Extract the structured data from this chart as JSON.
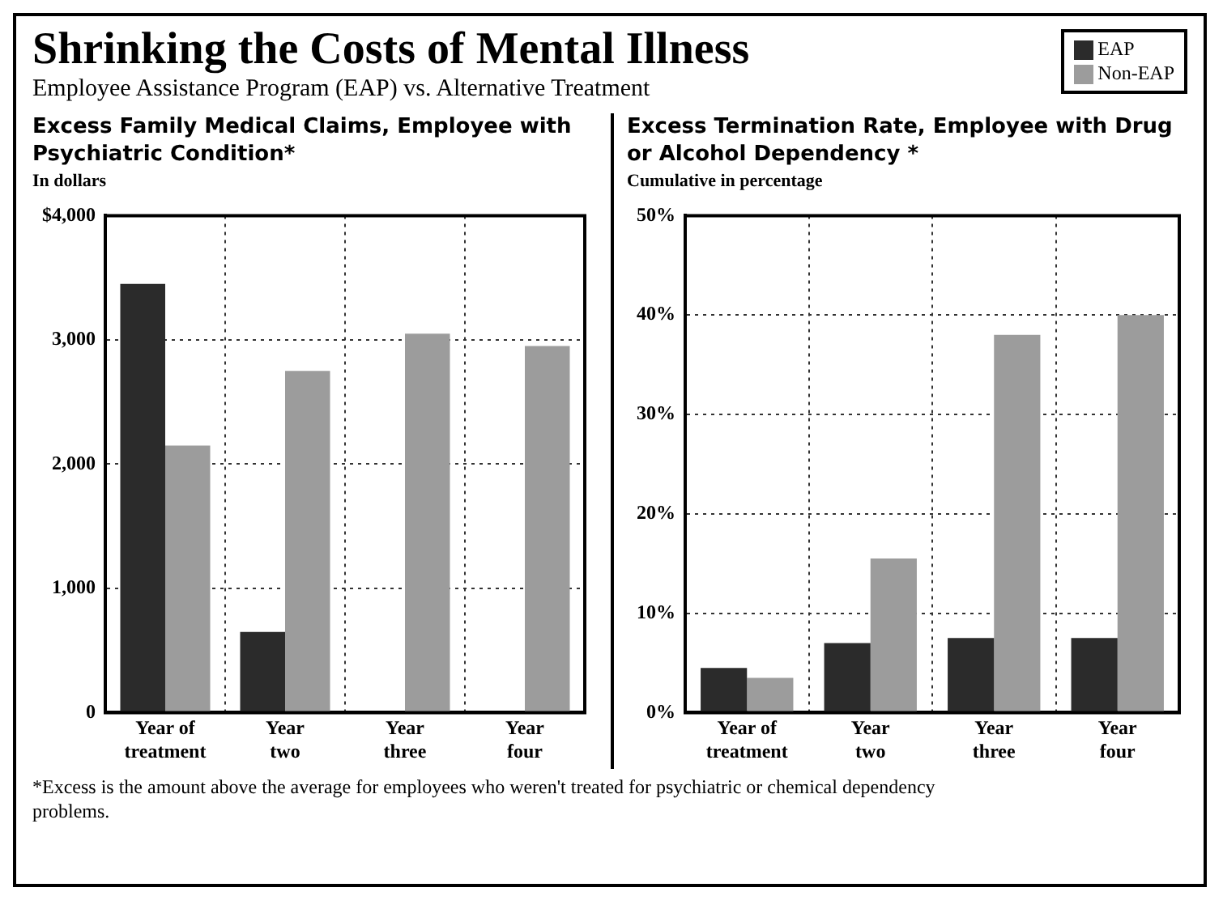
{
  "chart_data": [
    {
      "type": "bar",
      "title": "Shrinking the Costs of Mental Illness",
      "subtitle": "Employee Assistance Program (EAP) vs. Alternative Treatment",
      "legend": "top right",
      "xlabel": "Excess Family Medical Claims, Employee with Psychiatric Condition*",
      "ylabel": "In dollars",
      "categories": [
        "Year of treatment",
        "Year two",
        "Year three",
        "Year four"
      ],
      "series": [
        {
          "name": "EAP",
          "color": "#2b2b2b",
          "values": [
            3450,
            650,
            0,
            0
          ]
        },
        {
          "name": "Non-EAP",
          "color": "#9c9c9c",
          "values": [
            2150,
            2750,
            3050,
            2950
          ]
        }
      ],
      "ylim": [
        0,
        4000
      ],
      "yticks": [
        {
          "value": 0,
          "label": "0"
        },
        {
          "value": 1000,
          "label": "1,000"
        },
        {
          "value": 2000,
          "label": "2,000"
        },
        {
          "value": 3000,
          "label": "3,000"
        },
        {
          "value": 4000,
          "label": "$4,000"
        }
      ],
      "grid": true,
      "annotations": [
        "*Excess is the amount above the average for employees who weren't treated for psychiatric or chemical dependency problems."
      ]
    },
    {
      "type": "bar",
      "xlabel": "Excess Termination Rate, Employee with Drug or Alcohol Dependency *",
      "ylabel": "Cumulative in percentage",
      "categories": [
        "Year of treatment",
        "Year two",
        "Year three",
        "Year four"
      ],
      "series": [
        {
          "color": "#2b2b2b",
          "values": [
            4.5,
            7,
            7.5,
            7.5
          ]
        },
        {
          "color": "#9c9c9c",
          "values": [
            3.5,
            15.5,
            38,
            40
          ]
        }
      ],
      "ylim": [
        0,
        50
      ],
      "yticks": [
        {
          "value": 0,
          "label": "0%"
        },
        {
          "value": 10,
          "label": "10%"
        },
        {
          "value": 20,
          "label": "20%"
        },
        {
          "value": 30,
          "label": "30%"
        },
        {
          "value": 40,
          "label": "40%"
        },
        {
          "value": 50,
          "label": "50%"
        }
      ],
      "grid": true
    }
  ]
}
